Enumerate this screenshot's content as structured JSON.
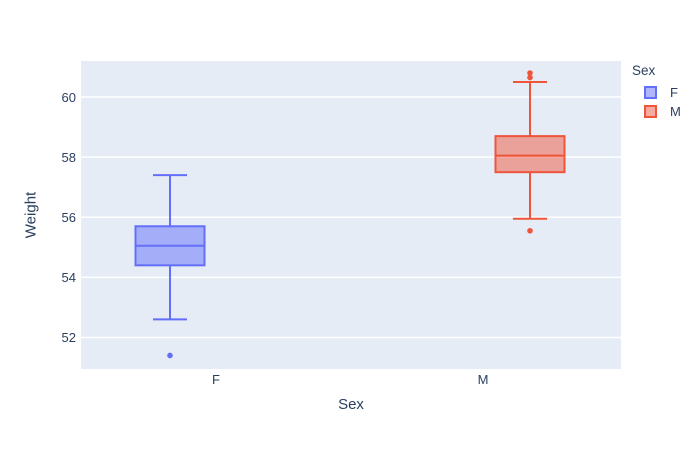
{
  "chart_data": {
    "type": "box",
    "title": "",
    "xlabel": "Sex",
    "ylabel": "Weight",
    "categories": [
      "F",
      "M"
    ],
    "yticks": [
      52,
      54,
      56,
      58,
      60
    ],
    "yrange": [
      50.95,
      61.2
    ],
    "grid": true,
    "boxmode": "group",
    "legend": {
      "title": "Sex",
      "position": "top-right",
      "entries": [
        {
          "label": "F",
          "line_color": "#636EFA",
          "fill_color": "rgba(99,110,250,0.5)"
        },
        {
          "label": "M",
          "line_color": "#EF553B",
          "fill_color": "rgba(239,85,59,0.5)"
        }
      ]
    },
    "series": [
      {
        "name": "F",
        "line_color": "#636EFA",
        "fill_color": "rgba(99,110,250,0.5)",
        "lower_fence": 52.6,
        "q1": 54.4,
        "median": 55.05,
        "q3": 55.7,
        "upper_fence": 57.4,
        "outliers": [
          51.4
        ]
      },
      {
        "name": "M",
        "line_color": "#EF553B",
        "fill_color": "rgba(239,85,59,0.5)",
        "lower_fence": 55.95,
        "q1": 57.5,
        "median": 58.05,
        "q3": 58.7,
        "upper_fence": 60.5,
        "outliers": [
          55.55,
          60.65,
          60.8
        ]
      }
    ]
  },
  "theme": {
    "paper_bg": "#FFFFFF",
    "plot_bg": "#E5ECF6",
    "grid_color": "#FFFFFF",
    "font_color": "#2A3F5F"
  }
}
